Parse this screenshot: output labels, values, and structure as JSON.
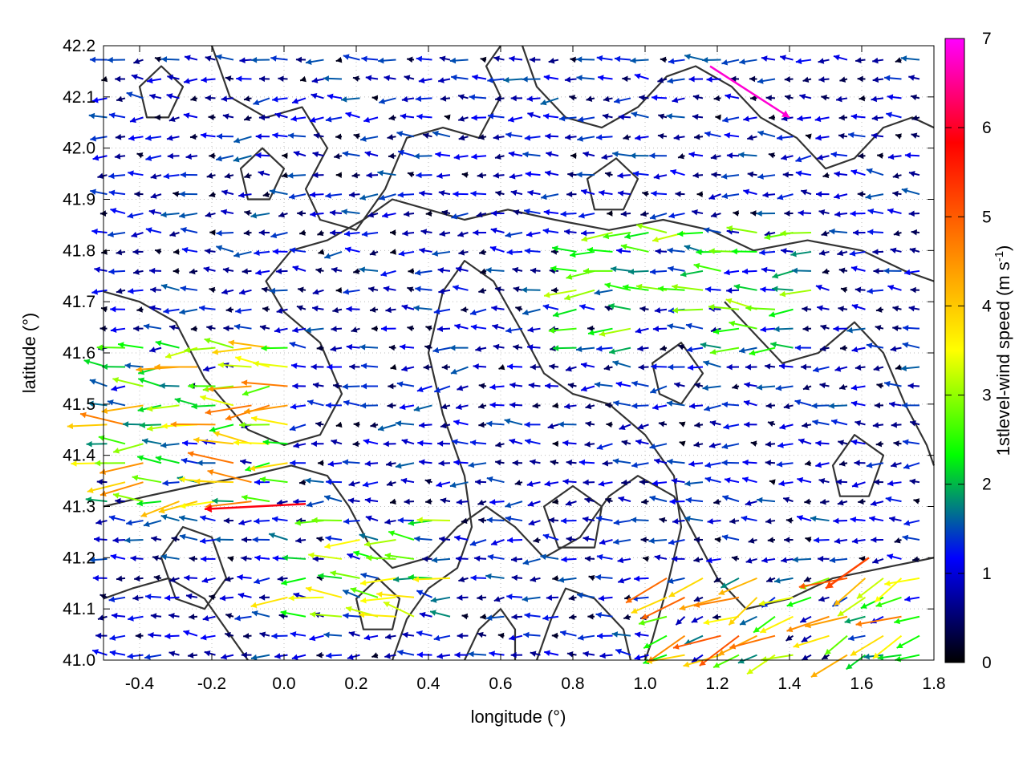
{
  "chart_data": {
    "type": "vector-field",
    "xlabel": "longitude (°)",
    "ylabel": "latitude (°)",
    "xlim": [
      -0.5,
      1.8
    ],
    "ylim": [
      41.0,
      42.2
    ],
    "x_ticks": [
      "-0.4",
      "-0.2",
      "0.0",
      "0.2",
      "0.4",
      "0.6",
      "0.8",
      "1.0",
      "1.2",
      "1.4",
      "1.6",
      "1.8"
    ],
    "x_tick_values": [
      -0.4,
      -0.2,
      0.0,
      0.2,
      0.4,
      0.6,
      0.8,
      1.0,
      1.2,
      1.4,
      1.6,
      1.8
    ],
    "y_ticks": [
      "41.0",
      "41.1",
      "41.2",
      "41.3",
      "41.4",
      "41.5",
      "41.6",
      "41.7",
      "41.8",
      "41.9",
      "42.0",
      "42.1",
      "42.2"
    ],
    "y_tick_values": [
      41.0,
      41.1,
      41.2,
      41.3,
      41.4,
      41.5,
      41.6,
      41.7,
      41.8,
      41.9,
      42.0,
      42.1,
      42.2
    ],
    "colorbar": {
      "label_main": "1stlevel-wind speed (m s",
      "label_exp": "-1",
      "label_close": ")",
      "range": [
        0,
        7
      ],
      "ticks": [
        "0",
        "1",
        "2",
        "3",
        "4",
        "5",
        "6",
        "7"
      ],
      "tick_values": [
        0,
        1,
        2,
        3,
        4,
        5,
        6,
        7
      ],
      "colors": [
        "#000000",
        "#0000ff",
        "#00ff00",
        "#ffff00",
        "#ff8000",
        "#ff0000",
        "#ff00ff"
      ]
    },
    "grid": "dotted",
    "contour_color": "#333333",
    "contours": [
      [
        [
          -0.5,
          41.72
        ],
        [
          -0.4,
          41.7
        ],
        [
          -0.3,
          41.66
        ],
        [
          -0.22,
          41.55
        ],
        [
          -0.1,
          41.45
        ],
        [
          0.0,
          41.42
        ],
        [
          0.1,
          41.44
        ],
        [
          0.16,
          41.52
        ],
        [
          0.1,
          41.62
        ],
        [
          0.0,
          41.68
        ],
        [
          -0.05,
          41.74
        ],
        [
          0.02,
          41.8
        ],
        [
          0.12,
          41.82
        ],
        [
          0.22,
          41.86
        ],
        [
          0.3,
          41.9
        ],
        [
          0.4,
          41.88
        ],
        [
          0.5,
          41.86
        ],
        [
          0.62,
          41.88
        ],
        [
          0.75,
          41.86
        ],
        [
          0.9,
          41.84
        ],
        [
          1.05,
          41.86
        ],
        [
          1.18,
          41.84
        ],
        [
          1.3,
          41.8
        ],
        [
          1.45,
          41.82
        ],
        [
          1.6,
          41.8
        ],
        [
          1.72,
          41.76
        ],
        [
          1.8,
          41.74
        ]
      ],
      [
        [
          -0.5,
          41.3
        ],
        [
          -0.38,
          41.32
        ],
        [
          -0.25,
          41.34
        ],
        [
          -0.1,
          41.36
        ],
        [
          0.02,
          41.38
        ],
        [
          0.12,
          41.36
        ],
        [
          0.18,
          41.3
        ],
        [
          0.24,
          41.22
        ],
        [
          0.3,
          41.18
        ],
        [
          0.4,
          41.2
        ],
        [
          0.48,
          41.26
        ],
        [
          0.56,
          41.3
        ],
        [
          0.64,
          41.26
        ],
        [
          0.72,
          41.2
        ],
        [
          0.82,
          41.24
        ],
        [
          0.9,
          41.32
        ],
        [
          0.98,
          41.36
        ],
        [
          1.08,
          41.32
        ],
        [
          1.14,
          41.24
        ],
        [
          1.2,
          41.16
        ],
        [
          1.28,
          41.1
        ],
        [
          1.4,
          41.12
        ],
        [
          1.52,
          41.16
        ],
        [
          1.66,
          41.18
        ],
        [
          1.8,
          41.2
        ]
      ],
      [
        [
          -0.2,
          42.2
        ],
        [
          -0.15,
          42.1
        ],
        [
          -0.05,
          42.06
        ],
        [
          0.05,
          42.08
        ],
        [
          0.12,
          42.0
        ],
        [
          0.06,
          41.92
        ],
        [
          0.1,
          41.86
        ],
        [
          0.2,
          41.84
        ],
        [
          0.28,
          41.92
        ],
        [
          0.34,
          42.02
        ],
        [
          0.44,
          42.04
        ],
        [
          0.54,
          42.02
        ],
        [
          0.6,
          42.1
        ],
        [
          0.56,
          42.16
        ],
        [
          0.6,
          42.2
        ]
      ],
      [
        [
          0.3,
          41.0
        ],
        [
          0.34,
          41.08
        ],
        [
          0.4,
          41.14
        ],
        [
          0.48,
          41.18
        ],
        [
          0.52,
          41.26
        ],
        [
          0.5,
          41.36
        ],
        [
          0.44,
          41.48
        ],
        [
          0.4,
          41.6
        ],
        [
          0.44,
          41.72
        ],
        [
          0.5,
          41.78
        ],
        [
          0.58,
          41.74
        ],
        [
          0.66,
          41.64
        ],
        [
          0.72,
          41.56
        ],
        [
          0.8,
          41.52
        ],
        [
          0.9,
          41.5
        ],
        [
          1.0,
          41.44
        ],
        [
          1.08,
          41.36
        ],
        [
          1.1,
          41.26
        ],
        [
          1.06,
          41.14
        ],
        [
          1.02,
          41.04
        ],
        [
          1.0,
          41.0
        ]
      ],
      [
        [
          0.66,
          42.2
        ],
        [
          0.7,
          42.12
        ],
        [
          0.78,
          42.06
        ],
        [
          0.88,
          42.04
        ],
        [
          0.98,
          42.08
        ],
        [
          1.06,
          42.14
        ],
        [
          1.14,
          42.16
        ],
        [
          1.24,
          42.12
        ],
        [
          1.32,
          42.06
        ],
        [
          1.42,
          42.02
        ],
        [
          1.5,
          41.96
        ],
        [
          1.58,
          41.98
        ],
        [
          1.66,
          42.04
        ],
        [
          1.74,
          42.06
        ],
        [
          1.8,
          42.04
        ]
      ],
      [
        [
          1.22,
          41.7
        ],
        [
          1.3,
          41.64
        ],
        [
          1.38,
          41.58
        ],
        [
          1.48,
          41.6
        ],
        [
          1.58,
          41.66
        ],
        [
          1.66,
          41.6
        ],
        [
          1.72,
          41.5
        ],
        [
          1.78,
          41.42
        ],
        [
          1.8,
          41.38
        ]
      ],
      [
        [
          0.7,
          41.0
        ],
        [
          0.74,
          41.08
        ],
        [
          0.78,
          41.14
        ],
        [
          0.86,
          41.12
        ],
        [
          0.94,
          41.06
        ],
        [
          0.96,
          41.0
        ]
      ],
      [
        [
          -0.5,
          41.12
        ],
        [
          -0.42,
          41.14
        ],
        [
          -0.32,
          41.16
        ],
        [
          -0.22,
          41.12
        ],
        [
          -0.16,
          41.06
        ],
        [
          -0.1,
          41.0
        ]
      ],
      [
        [
          0.5,
          41.0
        ],
        [
          0.54,
          41.06
        ],
        [
          0.6,
          41.1
        ],
        [
          0.64,
          41.06
        ],
        [
          0.64,
          41.0
        ]
      ]
    ],
    "closed_contours": [
      [
        [
          -0.34,
          41.2
        ],
        [
          -0.28,
          41.26
        ],
        [
          -0.2,
          41.24
        ],
        [
          -0.16,
          41.16
        ],
        [
          -0.22,
          41.1
        ],
        [
          -0.3,
          41.12
        ]
      ],
      [
        [
          0.2,
          41.12
        ],
        [
          0.26,
          41.16
        ],
        [
          0.32,
          41.12
        ],
        [
          0.3,
          41.06
        ],
        [
          0.22,
          41.06
        ]
      ],
      [
        [
          0.72,
          41.3
        ],
        [
          0.8,
          41.34
        ],
        [
          0.88,
          41.3
        ],
        [
          0.86,
          41.22
        ],
        [
          0.76,
          41.22
        ]
      ],
      [
        [
          -0.12,
          41.96
        ],
        [
          -0.06,
          42.0
        ],
        [
          0.0,
          41.96
        ],
        [
          -0.04,
          41.9
        ],
        [
          -0.1,
          41.9
        ]
      ],
      [
        [
          1.52,
          41.38
        ],
        [
          1.58,
          41.44
        ],
        [
          1.66,
          41.4
        ],
        [
          1.62,
          41.32
        ],
        [
          1.54,
          41.32
        ]
      ],
      [
        [
          0.84,
          41.94
        ],
        [
          0.92,
          41.98
        ],
        [
          0.98,
          41.94
        ],
        [
          0.94,
          41.88
        ],
        [
          0.86,
          41.88
        ]
      ],
      [
        [
          1.02,
          41.58
        ],
        [
          1.1,
          41.62
        ],
        [
          1.16,
          41.56
        ],
        [
          1.1,
          41.5
        ],
        [
          1.04,
          41.52
        ]
      ],
      [
        [
          -0.4,
          42.12
        ],
        [
          -0.34,
          42.16
        ],
        [
          -0.28,
          42.12
        ],
        [
          -0.32,
          42.06
        ],
        [
          -0.38,
          42.06
        ]
      ]
    ],
    "vector_field": {
      "grid_x": [
        -0.5,
        1.8,
        0.05
      ],
      "grid_y": [
        41.0,
        42.2,
        0.0375
      ],
      "direction": "mostly westward (easterly wind)",
      "speed_range": [
        0,
        7
      ],
      "regions": [
        {
          "lon": [
            -0.5,
            0.05
          ],
          "lat": [
            41.28,
            41.62
          ],
          "speed": 3.6,
          "u": -1.0,
          "v": 0.0
        },
        {
          "lon": [
            -0.3,
            0.0
          ],
          "lat": [
            41.28,
            41.32
          ],
          "speed": 6.0,
          "u": -1.0,
          "v": -0.05
        },
        {
          "lon": [
            0.0,
            0.5
          ],
          "lat": [
            41.06,
            41.3
          ],
          "speed": 2.8,
          "u": -1.0,
          "v": 0.1
        },
        {
          "lon": [
            1.05,
            1.8
          ],
          "lat": [
            41.0,
            41.18
          ],
          "speed": 3.8,
          "u": -0.9,
          "v": -0.4
        },
        {
          "lon": [
            0.8,
            1.5
          ],
          "lat": [
            41.6,
            41.84
          ],
          "speed": 2.4,
          "u": -1.0,
          "v": 0.0
        },
        {
          "lon": [
            -0.5,
            1.8
          ],
          "lat": [
            41.0,
            42.2
          ],
          "speed": 1.2,
          "u": -1.0,
          "v": 0.0
        }
      ],
      "highlights": [
        {
          "lon": 1.4,
          "lat": 42.06,
          "u": 0.22,
          "v": -0.1,
          "speed": 6.8
        },
        {
          "lon": -0.22,
          "lat": 41.295,
          "u": -0.28,
          "v": -0.01,
          "speed": 5.9
        },
        {
          "lon": 1.5,
          "lat": 41.14,
          "u": -0.12,
          "v": -0.06,
          "speed": 5.2
        }
      ]
    }
  }
}
